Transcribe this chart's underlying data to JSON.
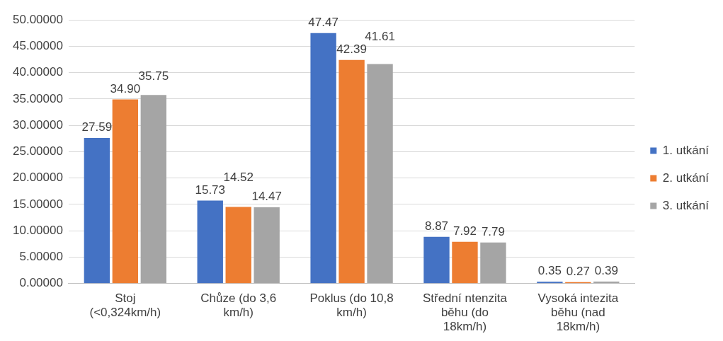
{
  "chart_data": {
    "type": "bar",
    "categories": [
      "Stoj (<0,324km/h)",
      "Chůze (do 3,6 km/h)",
      "Poklus (do 10,8 km/h)",
      "Střední ntenzita běhu (do 18km/h)",
      "Vysoká intezita běhu (nad 18km/h)"
    ],
    "series": [
      {
        "name": "1. utkání",
        "color": "#4472c4",
        "values": [
          27.59,
          15.73,
          47.47,
          8.87,
          0.35
        ],
        "value_labels": [
          "27.59",
          "15.73",
          "47.47",
          "8.87",
          "0.35"
        ]
      },
      {
        "name": "2. utkání",
        "color": "#ed7d31",
        "values": [
          34.9,
          14.52,
          42.39,
          7.92,
          0.27
        ],
        "value_labels": [
          "34.90",
          "14.52",
          "42.39",
          "7.92",
          "0.27"
        ]
      },
      {
        "name": "3. utkání",
        "color": "#a5a5a5",
        "values": [
          35.75,
          14.47,
          41.61,
          7.79,
          0.39
        ],
        "value_labels": [
          "35.75",
          "14.47",
          "41.61",
          "7.79",
          "0.39"
        ]
      }
    ],
    "ylim": [
      0,
      50
    ],
    "yticks": [
      {
        "value": 0,
        "label": "0.00000"
      },
      {
        "value": 5,
        "label": "5.00000"
      },
      {
        "value": 10,
        "label": "10.00000"
      },
      {
        "value": 15,
        "label": "15.00000"
      },
      {
        "value": 20,
        "label": "20.00000"
      },
      {
        "value": 25,
        "label": "25.00000"
      },
      {
        "value": 30,
        "label": "30.00000"
      },
      {
        "value": 35,
        "label": "35.00000"
      },
      {
        "value": 40,
        "label": "40.00000"
      },
      {
        "value": 45,
        "label": "45.00000"
      },
      {
        "value": 50,
        "label": "50.00000"
      }
    ],
    "grid": "y",
    "legend": "right"
  }
}
